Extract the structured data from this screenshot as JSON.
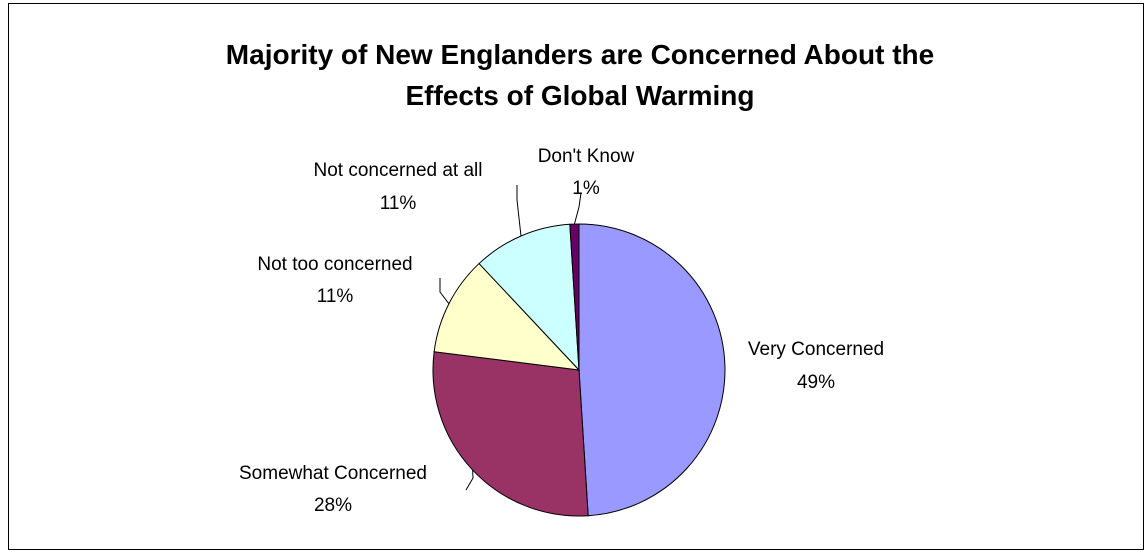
{
  "chart_data": {
    "type": "pie",
    "title_lines": [
      "Majority of New Englanders are Concerned About the",
      "Effects of Global Warming"
    ],
    "slices": [
      {
        "label": "Very Concerned",
        "value": 49,
        "value_label": "49%",
        "color": "#9999ff"
      },
      {
        "label": "Somewhat Concerned",
        "value": 28,
        "value_label": "28%",
        "color": "#993366"
      },
      {
        "label": "Not too concerned",
        "value": 11,
        "value_label": "11%",
        "color": "#ffffcc"
      },
      {
        "label": "Not concerned at all",
        "value": 11,
        "value_label": "11%",
        "color": "#ccffff"
      },
      {
        "label": "Don't Know",
        "value": 1,
        "value_label": "1%",
        "color": "#660066"
      }
    ],
    "start_angle_deg": 0,
    "direction": "clockwise",
    "legend": "none"
  }
}
